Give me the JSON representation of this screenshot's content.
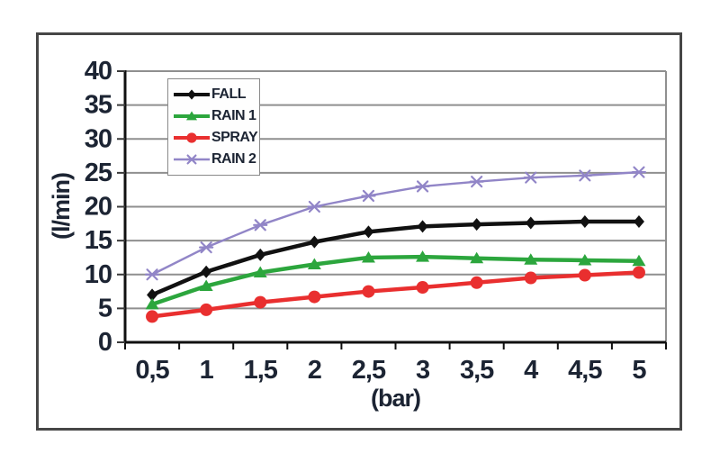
{
  "figure": {
    "background": "#ffffff",
    "border_color": "#464646"
  },
  "chart_data": {
    "type": "line",
    "title": "",
    "xlabel": "(bar)",
    "ylabel": "(l/min)",
    "x": [
      0.5,
      1,
      1.5,
      2,
      2.5,
      3,
      3.5,
      4,
      4.5,
      5
    ],
    "x_tick_labels": [
      "0,5",
      "1",
      "1,5",
      "2",
      "2,5",
      "3",
      "3,5",
      "4",
      "4,5",
      "5"
    ],
    "y_ticks": [
      0,
      5,
      10,
      15,
      20,
      25,
      30,
      35,
      40
    ],
    "ylim": [
      0,
      40
    ],
    "grid": "horizontal-only",
    "legend_position": "top-left-inside",
    "axis_text_color": "#1c2433",
    "gridline_color": "#8f8f8f",
    "axis_line_color": "#101010",
    "series": [
      {
        "name": "FALL",
        "color": "#111111",
        "marker": "diamond",
        "line_width": 4.5,
        "values": [
          7.0,
          10.4,
          12.9,
          14.8,
          16.3,
          17.1,
          17.4,
          17.6,
          17.8,
          17.8
        ]
      },
      {
        "name": "RAIN 1",
        "color": "#2ca63d",
        "marker": "triangle",
        "line_width": 4.5,
        "values": [
          5.6,
          8.3,
          10.3,
          11.5,
          12.5,
          12.6,
          12.4,
          12.2,
          12.1,
          12.0
        ]
      },
      {
        "name": "SPRAY",
        "color": "#e92f2f",
        "marker": "circle",
        "line_width": 4.5,
        "values": [
          3.8,
          4.8,
          5.9,
          6.7,
          7.5,
          8.1,
          8.8,
          9.5,
          9.9,
          10.3
        ]
      },
      {
        "name": "RAIN 2",
        "color": "#9185c7",
        "marker": "x",
        "line_width": 2.4,
        "values": [
          10.0,
          14.0,
          17.3,
          20.0,
          21.6,
          23.0,
          23.7,
          24.3,
          24.6,
          25.1
        ]
      }
    ]
  }
}
